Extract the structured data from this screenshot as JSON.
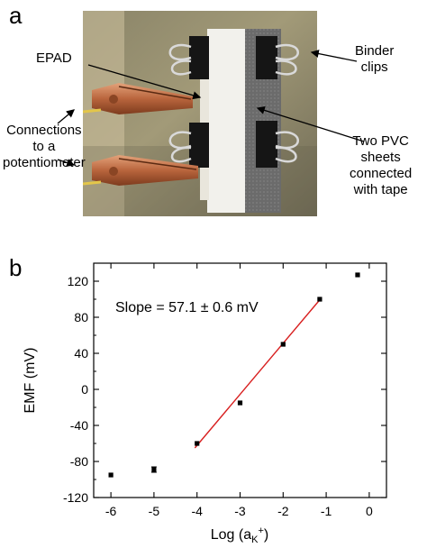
{
  "panel_a": {
    "label": "a",
    "callouts": {
      "epad": "EPAD",
      "binder_line1": "Binder",
      "binder_line2": "clips",
      "connections_line1": "Connections",
      "connections_line2": "to a",
      "connections_line3": "potentiometer",
      "pvc_line1": "Two PVC",
      "pvc_line2": "sheets",
      "pvc_line3": "connected",
      "pvc_line4": "with tape"
    }
  },
  "panel_b": {
    "label": "b"
  },
  "chart_data": {
    "type": "scatter",
    "xlabel": "Log (a",
    "xlabel_sub": "K",
    "xlabel_sup": "+",
    "xlabel_end": ")",
    "ylabel": "EMF (mV)",
    "xlim": [
      -6.4,
      0.4
    ],
    "ylim": [
      -120,
      140
    ],
    "xticks": [
      -6,
      -5,
      -4,
      -3,
      -2,
      -1,
      0
    ],
    "yticks": [
      -120,
      -80,
      -40,
      0,
      40,
      80,
      120
    ],
    "annotation": "Slope = 57.1 ± 0.6 mV",
    "fit_color": "#d81f1f",
    "marker_color": "#000000",
    "series": [
      {
        "x": [
          -6,
          -5,
          -4,
          -3,
          -2,
          -1.15,
          -0.27
        ],
        "y": [
          -95,
          -89,
          -60,
          -15,
          50,
          100,
          127
        ],
        "err": [
          0,
          3,
          0,
          0,
          0,
          0,
          0
        ]
      }
    ],
    "fit": {
      "x": [
        -4.05,
        -1.12
      ],
      "y": [
        -65,
        101
      ]
    }
  }
}
